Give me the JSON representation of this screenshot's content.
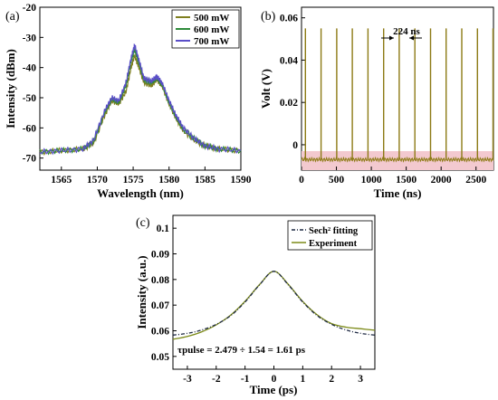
{
  "panel_labels": {
    "a": "(a)",
    "b": "(b)",
    "c": "(c)"
  },
  "colors": {
    "series_500": "#7f7f1f",
    "series_600": "#2e8b3a",
    "series_700": "#5a4ec8",
    "pulse_train": "#8c7a14",
    "pulse_baseline_band": "#f3c9cf",
    "sech_fit": "#1f2a44",
    "experiment": "#7c8a18"
  },
  "chart_data": [
    {
      "type": "line",
      "panel": "(a)",
      "xlabel": "Wavelength (nm)",
      "ylabel": "Intensity (dBm)",
      "xlim": [
        1562,
        1590
      ],
      "ylim": [
        -74,
        -20
      ],
      "xticks": [
        1565,
        1570,
        1575,
        1580,
        1585,
        1590
      ],
      "yticks": [
        -20,
        -30,
        -40,
        -50,
        -60,
        -70
      ],
      "legend_position": "top-right",
      "grid": false,
      "series": [
        {
          "name": "500 mW",
          "x": [
            1562,
            1565,
            1568,
            1569.5,
            1571,
            1572,
            1573,
            1574,
            1574.7,
            1575.2,
            1575.8,
            1576.5,
            1577.5,
            1578.3,
            1579,
            1580,
            1581,
            1582,
            1583.5,
            1585,
            1587,
            1590
          ],
          "y": [
            -68,
            -67.5,
            -67,
            -65,
            -56,
            -51,
            -52,
            -48,
            -40,
            -36,
            -40,
            -45,
            -46,
            -44,
            -46,
            -52,
            -57,
            -61,
            -64,
            -66,
            -67,
            -67.5
          ]
        },
        {
          "name": "600 mW",
          "x": [
            1562,
            1565,
            1568,
            1569.5,
            1571,
            1572,
            1573,
            1574,
            1574.7,
            1575.2,
            1575.8,
            1576.5,
            1577.5,
            1578.3,
            1579,
            1580,
            1581,
            1582,
            1583.5,
            1585,
            1587,
            1590
          ],
          "y": [
            -68,
            -67.5,
            -67,
            -64.5,
            -55,
            -50.5,
            -51.5,
            -46,
            -38,
            -34,
            -38.5,
            -44,
            -45,
            -43.5,
            -45.5,
            -51.5,
            -56.5,
            -60.5,
            -63.5,
            -66,
            -67,
            -67.5
          ]
        },
        {
          "name": "700 mW",
          "x": [
            1562,
            1565,
            1568,
            1569.5,
            1571,
            1572,
            1573,
            1574,
            1574.7,
            1575.2,
            1575.8,
            1576.5,
            1577.5,
            1578.3,
            1579,
            1580,
            1581,
            1582,
            1583.5,
            1585,
            1587,
            1590
          ],
          "y": [
            -68,
            -67.5,
            -67,
            -64,
            -54.5,
            -50,
            -51,
            -45,
            -37,
            -32.5,
            -37.5,
            -43.5,
            -44.5,
            -43,
            -45,
            -51,
            -56,
            -60,
            -63.5,
            -66,
            -67,
            -67.5
          ]
        }
      ]
    },
    {
      "type": "line",
      "panel": "(b)",
      "xlabel": "Time (ns)",
      "ylabel": "Volt (V)",
      "xlim": [
        0,
        2750
      ],
      "ylim": [
        -0.012,
        0.065
      ],
      "xticks": [
        0,
        500,
        1000,
        1500,
        2000,
        2500
      ],
      "yticks": [
        0,
        0.02,
        0.04,
        0.06
      ],
      "annotation": "224 ns",
      "grid": false,
      "pulse_times": [
        56,
        280,
        504,
        728,
        952,
        1176,
        1400,
        1624,
        1848,
        2072,
        2296,
        2520,
        2744
      ],
      "pulse_peak": 0.055,
      "baseline": -0.007
    },
    {
      "type": "line",
      "panel": "(c)",
      "xlabel": "Time (ps)",
      "ylabel": "Intensity (a.u.)",
      "xlim": [
        -3.5,
        3.5
      ],
      "ylim": [
        0.045,
        0.105
      ],
      "xticks": [
        -3,
        -2,
        -1,
        0,
        1,
        2,
        3
      ],
      "yticks": [
        0.05,
        0.06,
        0.07,
        0.08,
        0.09,
        0.1
      ],
      "legend_position": "top-right",
      "annotation": "τpulse = 2.479 ÷ 1.54 = 1.61 ps",
      "grid": false,
      "series": [
        {
          "name": "Sech² fitting",
          "x": [
            -3.5,
            -3,
            -2.5,
            -2,
            -1.5,
            -1,
            -0.5,
            0,
            0.5,
            1,
            1.5,
            2,
            2.5,
            3,
            3.5
          ],
          "y": [
            0.0583,
            0.059,
            0.0603,
            0.0625,
            0.0659,
            0.0712,
            0.0779,
            0.0832,
            0.0779,
            0.0712,
            0.0659,
            0.0625,
            0.0603,
            0.059,
            0.0583
          ]
        },
        {
          "name": "Experiment",
          "x": [
            -3.5,
            -3,
            -2.5,
            -2,
            -1.5,
            -1,
            -0.5,
            0,
            0.5,
            1,
            1.5,
            2,
            2.5,
            3,
            3.5
          ],
          "y": [
            0.0567,
            0.0578,
            0.0596,
            0.0623,
            0.0661,
            0.0715,
            0.078,
            0.0832,
            0.0781,
            0.0714,
            0.0662,
            0.0628,
            0.0614,
            0.0608,
            0.0602
          ]
        }
      ]
    }
  ]
}
